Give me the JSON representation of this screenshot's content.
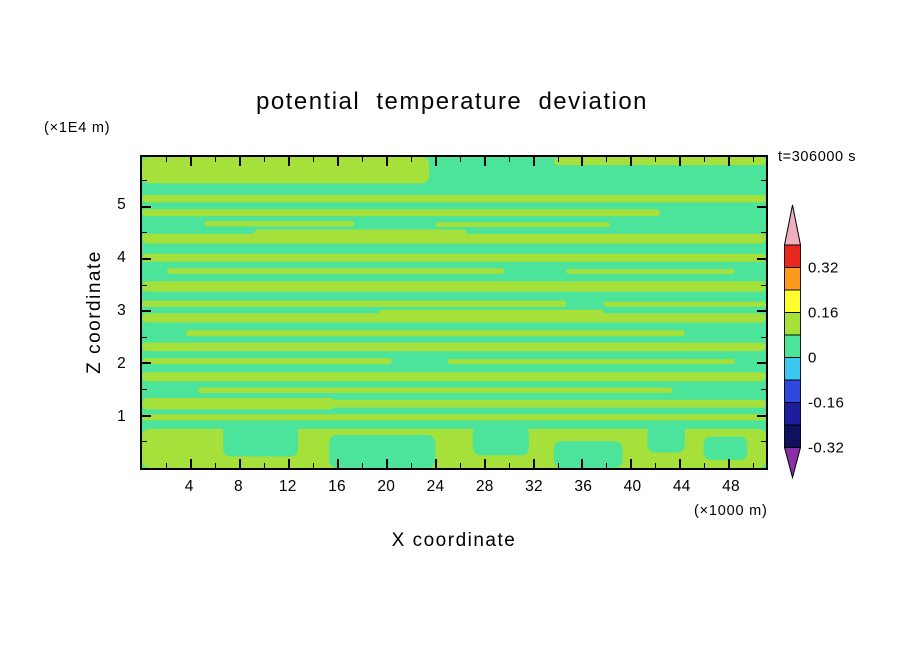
{
  "page": {
    "background": "#ffffff"
  },
  "chart_data": {
    "type": "heatmap",
    "title": "potential temperature deviation",
    "time_label": "t=306000 s",
    "xlabel": "X coordinate",
    "ylabel": "Z coordinate",
    "x_unit_label": "(×1000 m)",
    "y_unit_label": "(×1E4 m)",
    "xlim": [
      0,
      51
    ],
    "ylim": [
      0,
      5.95
    ],
    "x_major_ticks": [
      4,
      8,
      12,
      16,
      20,
      24,
      28,
      32,
      36,
      40,
      44,
      48
    ],
    "x_minor_step": 2,
    "y_major_ticks": [
      1,
      2,
      3,
      4,
      5
    ],
    "y_minor_step": 0.5,
    "grid": false,
    "frame_color": "#000000",
    "field": {
      "description": "Contour-filled x-z cross-section of potential temperature deviation at t=306000 s; nearly horizontal striated bands alternating between the 0-to-0.08 band (spring green) and the 0.08-to-0.16 band (yellow-green); yellow-green layers concentrated near the top-left and along the bottom boundary.",
      "background_color": "#4ce49b",
      "streak_color": "#a6e03a",
      "value_band_background": "0 to 0.08",
      "value_band_streak": "0.08 to 0.16"
    },
    "stripes": [
      {
        "x": 0,
        "y": 0,
        "w": 46,
        "h": 8.5
      },
      {
        "x": 66,
        "y": 0,
        "w": 34,
        "h": 2.6
      },
      {
        "x": 0,
        "y": 12.2,
        "w": 100,
        "h": 2.4
      },
      {
        "x": 0,
        "y": 16.8,
        "w": 83,
        "h": 2.2
      },
      {
        "x": 10,
        "y": 20.6,
        "w": 24,
        "h": 1.7
      },
      {
        "x": 47,
        "y": 21.0,
        "w": 28,
        "h": 1.5
      },
      {
        "x": 0,
        "y": 24.7,
        "w": 100,
        "h": 3.1
      },
      {
        "x": 18,
        "y": 23.3,
        "w": 34,
        "h": 2.2
      },
      {
        "x": 0,
        "y": 31.1,
        "w": 100,
        "h": 2.6
      },
      {
        "x": 4,
        "y": 35.8,
        "w": 54,
        "h": 1.8
      },
      {
        "x": 68,
        "y": 36.1,
        "w": 27,
        "h": 1.5
      },
      {
        "x": 0,
        "y": 40.0,
        "w": 100,
        "h": 3.3
      },
      {
        "x": 0,
        "y": 46.2,
        "w": 68,
        "h": 2.0
      },
      {
        "x": 74,
        "y": 46.5,
        "w": 26,
        "h": 1.6
      },
      {
        "x": 0,
        "y": 50.3,
        "w": 100,
        "h": 2.9
      },
      {
        "x": 38,
        "y": 49.1,
        "w": 36,
        "h": 1.9
      },
      {
        "x": 7,
        "y": 55.7,
        "w": 80,
        "h": 1.9
      },
      {
        "x": 0,
        "y": 59.7,
        "w": 100,
        "h": 2.7
      },
      {
        "x": 0,
        "y": 64.7,
        "w": 40,
        "h": 1.9
      },
      {
        "x": 49,
        "y": 65.0,
        "w": 46,
        "h": 1.6
      },
      {
        "x": 0,
        "y": 69.2,
        "w": 100,
        "h": 2.9
      },
      {
        "x": 9,
        "y": 74.1,
        "w": 76,
        "h": 1.8
      },
      {
        "x": 0,
        "y": 77.5,
        "w": 31,
        "h": 3.7
      },
      {
        "x": 0,
        "y": 78.1,
        "w": 100,
        "h": 2.5
      },
      {
        "x": 0,
        "y": 82.7,
        "w": 100,
        "h": 2.0
      },
      {
        "x": 0,
        "y": 87.4,
        "w": 100,
        "h": 12.6
      },
      {
        "x": 13,
        "y": 84.8,
        "w": 12,
        "h": 11.5,
        "c": "sg"
      },
      {
        "x": 30,
        "y": 89.4,
        "w": 17,
        "h": 10.6,
        "c": "sg"
      },
      {
        "x": 53,
        "y": 86.4,
        "w": 9,
        "h": 9.5,
        "c": "sg"
      },
      {
        "x": 66,
        "y": 91.4,
        "w": 11,
        "h": 8.6,
        "c": "sg"
      },
      {
        "x": 81,
        "y": 85.4,
        "w": 6,
        "h": 9.6,
        "c": "sg"
      },
      {
        "x": 90,
        "y": 89.9,
        "w": 7,
        "h": 7.5,
        "c": "sg"
      }
    ],
    "colorbar": {
      "labels": [
        "0.32",
        "0.16",
        "0",
        "-0.16",
        "-0.32"
      ],
      "label_boundary_values": [
        0.32,
        0.16,
        0,
        -0.16,
        -0.32
      ],
      "cell_colors_top_to_bottom": [
        "#e8271e",
        "#fb9a1c",
        "#fdfd2e",
        "#a6e03a",
        "#4ce49b",
        "#3cc9f1",
        "#2f49e0",
        "#1d1d9e",
        "#10105e"
      ],
      "cell_step": 0.08,
      "arrow_top_color": "#f0afbe",
      "arrow_bottom_color": "#8b2fa6",
      "outline_color": "#000000"
    }
  }
}
